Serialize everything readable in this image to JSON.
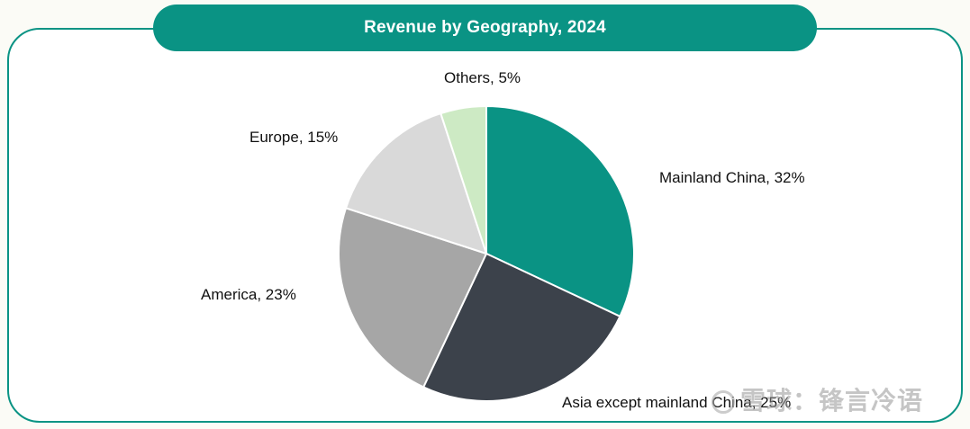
{
  "chart_data": {
    "type": "pie",
    "title": "Revenue by Geography, 2024",
    "slices": [
      {
        "label": "Mainland China",
        "value": 32,
        "color": "#0a9384",
        "text": "Mainland China, 32%"
      },
      {
        "label": "Asia except mainland China",
        "value": 25,
        "color": "#3c424b",
        "text": "Asia except mainland China, 25%"
      },
      {
        "label": "America",
        "value": 23,
        "color": "#a6a6a6",
        "text": "America, 23%"
      },
      {
        "label": "Europe",
        "value": 15,
        "color": "#d9d9d9",
        "text": "Europe, 15%"
      },
      {
        "label": "Others",
        "value": 5,
        "color": "#cdeac4",
        "text": "Others, 5%"
      }
    ]
  },
  "watermark": {
    "text": "雪球：锋言冷语"
  }
}
